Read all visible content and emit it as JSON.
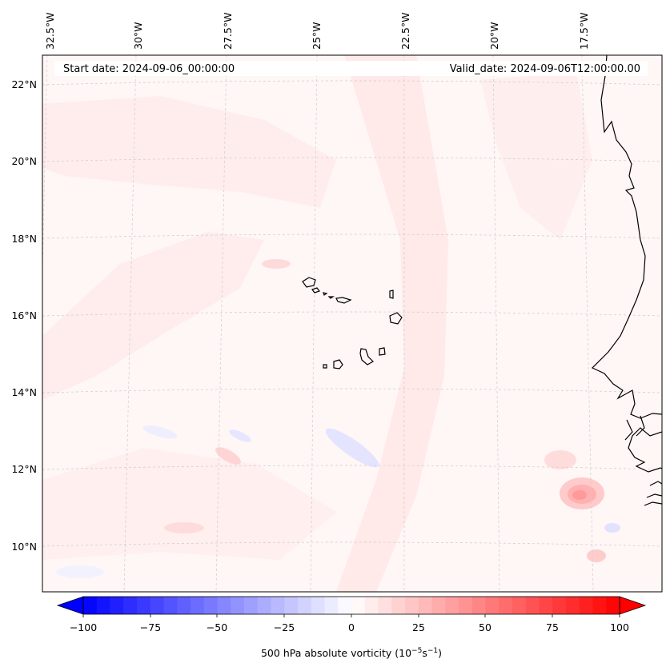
{
  "map": {
    "start_date_text": "Start date: 2024-09-06_00:00:00",
    "valid_date_text": "Valid_date: 2024-09-06T12:00:00.00",
    "lon_labels": [
      "32.5°W",
      "30°W",
      "27.5°W",
      "25°W",
      "22.5°W",
      "20°W",
      "17.5°W"
    ],
    "lat_labels": [
      "22°N",
      "20°N",
      "18°N",
      "16°N",
      "14°N",
      "12°N",
      "10°N"
    ],
    "coastline_color": "#000000",
    "gridline_color": "#cccccc"
  },
  "colorbar": {
    "ticks": [
      "−100",
      "−75",
      "−50",
      "−25",
      "0",
      "25",
      "50",
      "75",
      "100"
    ],
    "label_prefix": "500 hPa absolute vorticity (10",
    "label_exp1": "−5",
    "label_mid": "s",
    "label_exp2": "−1",
    "label_suffix": ")",
    "low_color": "#0000ff",
    "mid_color": "#ffffff",
    "high_color": "#ff0000"
  }
}
